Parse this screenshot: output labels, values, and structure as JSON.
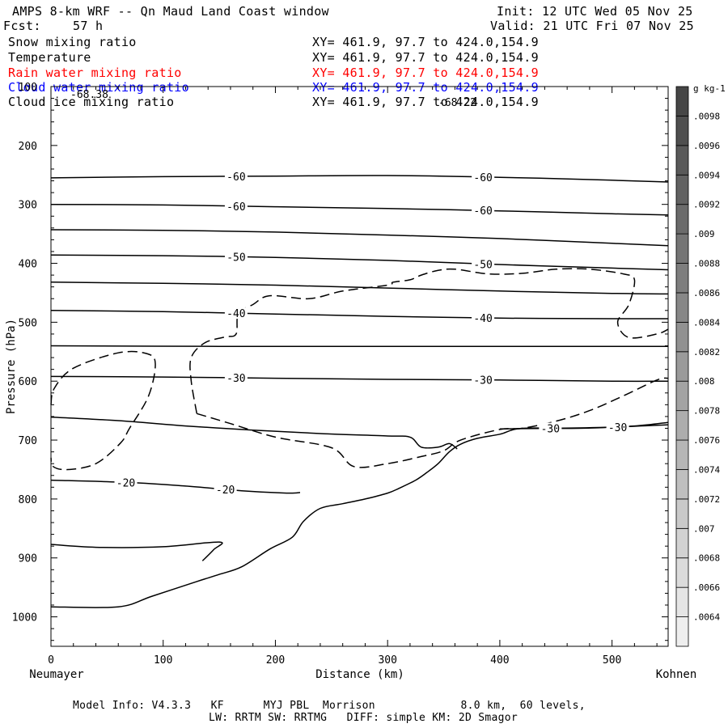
{
  "header": {
    "title": "AMPS 8-km WRF -- Qn Maud Land Coast window",
    "init": "Init: 12 UTC Wed 05 Nov 25",
    "fcst_label": "Fcst:",
    "fcst_value": "57 h",
    "valid": "Valid: 21 UTC Fri 07 Nov 25"
  },
  "fields": [
    {
      "name": "Snow mixing ratio",
      "xy": "XY= 461.9, 97.7 to 424.0,154.9",
      "color": "#000000"
    },
    {
      "name": "Temperature",
      "xy": "XY= 461.9, 97.7 to 424.0,154.9",
      "color": "#000000"
    },
    {
      "name": "Rain water mixing ratio",
      "xy": "XY= 461.9, 97.7 to 424.0,154.9",
      "color": "#ff0000"
    },
    {
      "name": "Cloud water mixing ratio",
      "xy": "XY= 461.9, 97.7 to 424.0,154.9",
      "color": "#0000ff"
    },
    {
      "name": "Cloud ice mixing ratio",
      "xy": "XY= 461.9, 97.7 to 424.0,154.9",
      "color": "#000000"
    }
  ],
  "footer": {
    "line1": "Model Info: V4.3.3   KF      MYJ PBL  Morrison             8.0 km,  60 levels,",
    "line2": "LW: RRTM SW: RRTMG   DIFF: simple KM: 2D Smagor"
  },
  "chart_data": {
    "type": "contour",
    "xlabel": "Distance (km)",
    "ylabel": "Pressure (hPa)",
    "x_left_label": "Neumayer",
    "x_right_label": "Kohnen",
    "xlim": [
      0,
      550
    ],
    "ylim": [
      1050,
      100
    ],
    "x_ticks": [
      0,
      100,
      200,
      300,
      400,
      500
    ],
    "y_ticks": [
      100,
      200,
      300,
      400,
      500,
      600,
      700,
      800,
      900,
      1000
    ],
    "annotations": [
      "-68.38",
      "-68.22"
    ],
    "colorbar": {
      "unit": "g kg-1",
      "ticks": [
        ".0064",
        ".0066",
        ".0068",
        ".007",
        ".0072",
        ".0074",
        ".0076",
        ".0078",
        ".008",
        ".0082",
        ".0084",
        ".0086",
        ".0088",
        ".009",
        ".0092",
        ".0094",
        ".0096",
        ".0098"
      ]
    },
    "temperature_contours": [
      {
        "label": "-60",
        "points": [
          [
            0,
            255
          ],
          [
            100,
            253
          ],
          [
            200,
            252
          ],
          [
            300,
            251
          ],
          [
            400,
            254
          ],
          [
            500,
            259
          ],
          [
            550,
            262
          ]
        ]
      },
      {
        "label": "-60",
        "points": [
          [
            0,
            300
          ],
          [
            100,
            301
          ],
          [
            200,
            304
          ],
          [
            300,
            307
          ],
          [
            400,
            311
          ],
          [
            500,
            316
          ],
          [
            550,
            318
          ]
        ]
      },
      {
        "label": "",
        "points": [
          [
            0,
            343
          ],
          [
            100,
            344
          ],
          [
            200,
            347
          ],
          [
            300,
            352
          ],
          [
            400,
            358
          ],
          [
            500,
            366
          ],
          [
            550,
            370
          ]
        ]
      },
      {
        "label": "-50",
        "points": [
          [
            0,
            386
          ],
          [
            100,
            387
          ],
          [
            200,
            390
          ],
          [
            300,
            395
          ],
          [
            400,
            402
          ],
          [
            500,
            408
          ],
          [
            550,
            411
          ]
        ]
      },
      {
        "label": "",
        "points": [
          [
            0,
            432
          ],
          [
            100,
            434
          ],
          [
            200,
            437
          ],
          [
            300,
            442
          ],
          [
            400,
            447
          ],
          [
            500,
            451
          ],
          [
            550,
            452
          ]
        ]
      },
      {
        "label": "-40",
        "points": [
          [
            0,
            480
          ],
          [
            100,
            482
          ],
          [
            200,
            486
          ],
          [
            300,
            490
          ],
          [
            400,
            493
          ],
          [
            500,
            494
          ],
          [
            550,
            494
          ]
        ]
      },
      {
        "label": "",
        "points": [
          [
            0,
            540
          ],
          [
            150,
            541
          ],
          [
            300,
            541
          ],
          [
            450,
            541
          ],
          [
            550,
            541
          ]
        ]
      },
      {
        "label": "-30",
        "points": [
          [
            0,
            592
          ],
          [
            100,
            593
          ],
          [
            200,
            595
          ],
          [
            300,
            597
          ],
          [
            400,
            598
          ],
          [
            500,
            600
          ],
          [
            550,
            600
          ]
        ]
      },
      {
        "label": "",
        "points": [
          [
            0,
            661
          ],
          [
            60,
            667
          ],
          [
            120,
            676
          ],
          [
            180,
            683
          ],
          [
            240,
            689
          ],
          [
            300,
            693
          ],
          [
            320,
            695
          ],
          [
            330,
            712
          ],
          [
            345,
            712
          ],
          [
            355,
            706
          ],
          [
            362,
            715
          ]
        ]
      },
      {
        "label": "-30",
        "points": [
          [
            400,
            681
          ],
          [
            450,
            680
          ],
          [
            500,
            678
          ],
          [
            550,
            674
          ]
        ]
      },
      {
        "label": "-20",
        "points": [
          [
            0,
            768
          ],
          [
            70,
            772
          ],
          [
            120,
            778
          ],
          [
            170,
            786
          ],
          [
            210,
            790
          ],
          [
            222,
            789
          ]
        ]
      },
      {
        "label": "",
        "points": [
          [
            0,
            877
          ],
          [
            40,
            882
          ],
          [
            100,
            881
          ],
          [
            150,
            873
          ],
          [
            145,
            886
          ],
          [
            135,
            905
          ]
        ]
      }
    ],
    "snow_dashed_contours": [
      {
        "label": "",
        "points": [
          [
            0,
            640
          ],
          [
            3,
            612
          ],
          [
            20,
            578
          ],
          [
            60,
            552
          ],
          [
            85,
            553
          ],
          [
            93,
            570
          ],
          [
            87,
            625
          ],
          [
            70,
            680
          ],
          [
            62,
            705
          ],
          [
            40,
            740
          ],
          [
            15,
            750
          ],
          [
            2,
            745
          ],
          [
            0,
            730
          ]
        ]
      },
      {
        "label": "",
        "points": [
          [
            130,
            655
          ],
          [
            125,
            600
          ],
          [
            125,
            560
          ],
          [
            137,
            535
          ],
          [
            155,
            525
          ],
          [
            165,
            520
          ],
          [
            167,
            485
          ],
          [
            180,
            470
          ],
          [
            195,
            455
          ],
          [
            230,
            460
          ],
          [
            260,
            447
          ],
          [
            300,
            437
          ],
          [
            305,
            432
          ],
          [
            320,
            428
          ],
          [
            330,
            420
          ],
          [
            345,
            412
          ],
          [
            360,
            410
          ],
          [
            390,
            418
          ],
          [
            420,
            417
          ],
          [
            450,
            410
          ],
          [
            480,
            410
          ],
          [
            510,
            418
          ],
          [
            520,
            428
          ],
          [
            515,
            470
          ],
          [
            505,
            500
          ],
          [
            515,
            526
          ],
          [
            540,
            520
          ],
          [
            550,
            512
          ]
        ]
      },
      {
        "label": "",
        "points": [
          [
            130,
            655
          ],
          [
            160,
            672
          ],
          [
            200,
            695
          ],
          [
            250,
            713
          ],
          [
            270,
            745
          ],
          [
            300,
            740
          ],
          [
            330,
            728
          ],
          [
            350,
            718
          ],
          [
            365,
            700
          ],
          [
            400,
            682
          ],
          [
            420,
            680
          ],
          [
            450,
            668
          ],
          [
            480,
            650
          ],
          [
            510,
            625
          ],
          [
            540,
            598
          ],
          [
            550,
            595
          ]
        ]
      }
    ],
    "terrain": [
      [
        0,
        983
      ],
      [
        60,
        983
      ],
      [
        90,
        965
      ],
      [
        130,
        940
      ],
      [
        150,
        928
      ],
      [
        170,
        915
      ],
      [
        195,
        885
      ],
      [
        215,
        865
      ],
      [
        225,
        838
      ],
      [
        240,
        816
      ],
      [
        260,
        808
      ],
      [
        280,
        800
      ],
      [
        300,
        790
      ],
      [
        310,
        782
      ],
      [
        325,
        768
      ],
      [
        335,
        755
      ],
      [
        345,
        740
      ],
      [
        355,
        720
      ],
      [
        365,
        707
      ],
      [
        380,
        697
      ],
      [
        400,
        690
      ],
      [
        420,
        680
      ],
      [
        470,
        680
      ],
      [
        520,
        676
      ],
      [
        550,
        670
      ]
    ]
  }
}
